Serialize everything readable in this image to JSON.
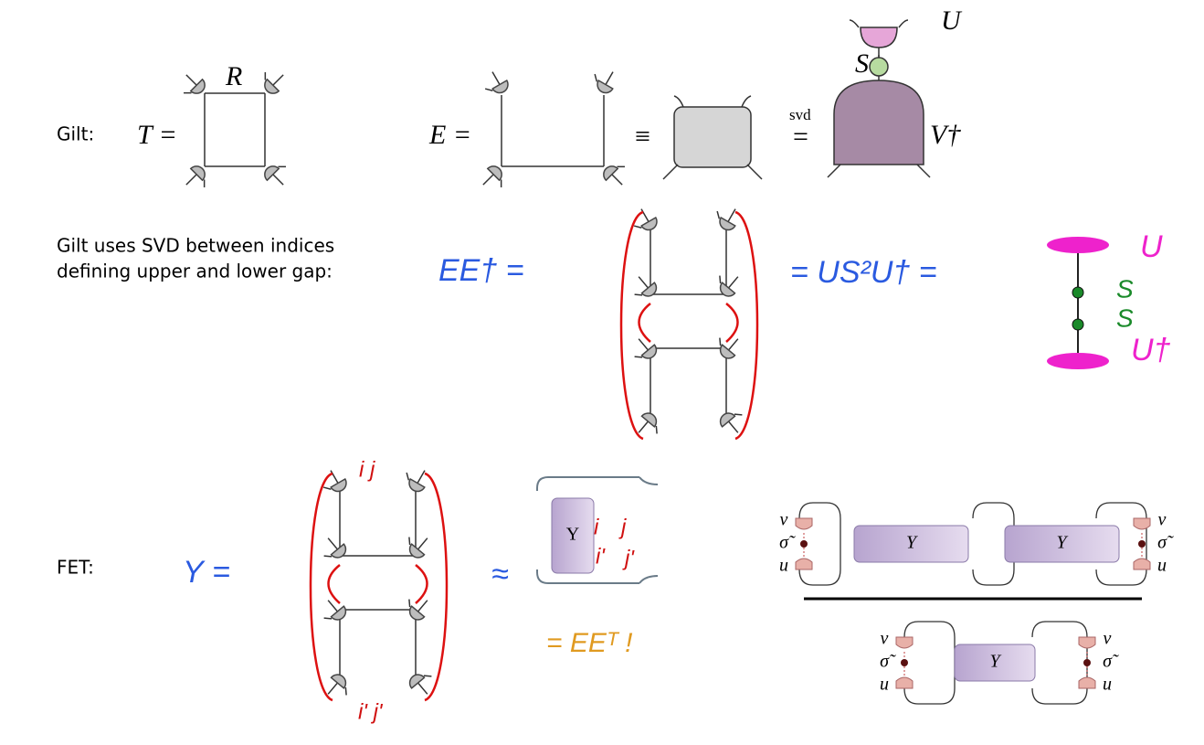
{
  "gilt": {
    "label": "Gilt:",
    "t_eq": "T =",
    "r": "R",
    "e_eq": "E =",
    "equiv": "≡",
    "svd": "svd",
    "svd_eq": "=",
    "s": "S",
    "u": "U",
    "vdag": "V†"
  },
  "svd_row": {
    "text": [
      "Gilt uses SVD between indices",
      "defining upper and lower gap:"
    ],
    "lhs": "EE† =",
    "mid": "= US²U† =",
    "u": "U",
    "s_top": "S",
    "s_bottom": "S",
    "udag": "U†"
  },
  "fet": {
    "label": "FET:",
    "lhs": "Υ =",
    "approx": "≈",
    "box": "Υ",
    "box_indices": [
      "i",
      "j",
      "i'",
      "j'"
    ],
    "top_indices": "i j",
    "bottom_indices": "i' j'",
    "result": "= EEᵀ !",
    "right": {
      "left_labels": [
        "v",
        "σ̃",
        "u"
      ],
      "box_left": "Υ",
      "sigma_left": "σ",
      "sigma_right": "σ",
      "box_right": "Υ",
      "right_labels": [
        "v",
        "σ̃",
        "u"
      ],
      "bottom_left_labels": [
        "v",
        "σ̃",
        "u"
      ],
      "box_bottom": "Υ",
      "bottom_right_labels": [
        "v",
        "σ̃",
        "u"
      ]
    }
  }
}
